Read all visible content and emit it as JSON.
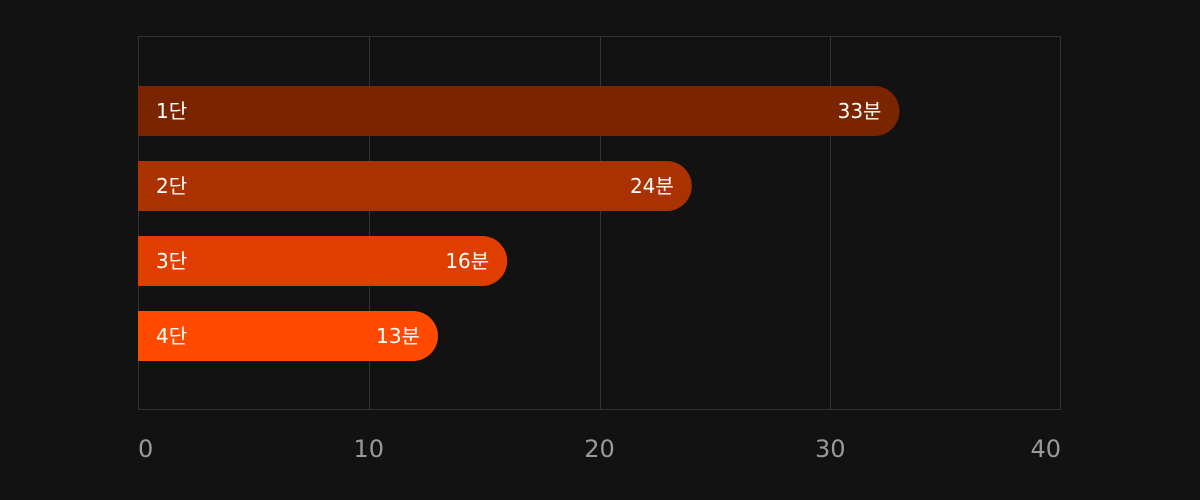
{
  "chart_data": {
    "type": "bar",
    "orientation": "horizontal",
    "categories": [
      "1단",
      "2단",
      "3단",
      "4단"
    ],
    "values": [
      33,
      24,
      16,
      13
    ],
    "value_labels": [
      "33분",
      "24분",
      "16분",
      "13분"
    ],
    "xlim": [
      0,
      40
    ],
    "x_ticks": [
      0,
      10,
      20,
      30,
      40
    ],
    "x_tick_labels": [
      "0",
      "10",
      "20",
      "30",
      "40"
    ],
    "title": "",
    "xlabel": "",
    "ylabel": "",
    "grid": "vertical",
    "legend": "none"
  },
  "colors": {
    "background": "#121212",
    "grid": "#333333",
    "tick_text": "#9a9a9a",
    "bar_text": "#ffffff",
    "bars": [
      "#7a2400",
      "#aa3200",
      "#e03d00",
      "#ff4a00"
    ]
  }
}
